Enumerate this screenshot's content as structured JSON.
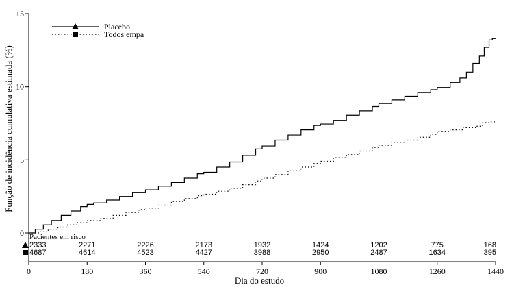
{
  "chart_data": {
    "type": "line",
    "xlabel": "Dia do estudo",
    "ylabel": "Função de incidência cumulativa estimada (%)",
    "xlim": [
      0,
      1440
    ],
    "ylim": [
      0,
      15
    ],
    "x_ticks": [
      0,
      180,
      360,
      540,
      720,
      900,
      1080,
      1260,
      1440
    ],
    "y_ticks": [
      0,
      5,
      10,
      15
    ],
    "grid": false,
    "legend_position": "top-left",
    "series": [
      {
        "name": "Placebo",
        "marker": "triangle",
        "line_style": "solid",
        "color": "#000000",
        "x": [
          0,
          20,
          45,
          70,
          100,
          130,
          160,
          180,
          200,
          240,
          280,
          320,
          360,
          400,
          440,
          480,
          520,
          540,
          580,
          620,
          660,
          700,
          720,
          760,
          800,
          840,
          880,
          900,
          940,
          980,
          1020,
          1060,
          1080,
          1120,
          1160,
          1200,
          1240,
          1260,
          1300,
          1330,
          1350,
          1370,
          1390,
          1405,
          1420,
          1430,
          1440
        ],
        "y": [
          0,
          0.25,
          0.55,
          0.85,
          1.2,
          1.5,
          1.8,
          1.95,
          2.05,
          2.25,
          2.5,
          2.75,
          2.95,
          3.2,
          3.45,
          3.75,
          4.05,
          4.15,
          4.5,
          4.85,
          5.3,
          5.75,
          5.95,
          6.35,
          6.7,
          7.05,
          7.35,
          7.45,
          7.7,
          8.05,
          8.35,
          8.65,
          8.85,
          9.1,
          9.35,
          9.6,
          9.8,
          9.95,
          10.3,
          10.6,
          11.0,
          11.6,
          12.1,
          12.7,
          13.2,
          13.3,
          13.3
        ]
      },
      {
        "name": "Todos empa",
        "marker": "square",
        "line_style": "dotted",
        "color": "#000000",
        "x": [
          0,
          30,
          60,
          90,
          120,
          150,
          180,
          220,
          260,
          300,
          340,
          360,
          400,
          440,
          480,
          520,
          540,
          580,
          620,
          660,
          700,
          720,
          760,
          800,
          840,
          880,
          900,
          940,
          980,
          1020,
          1060,
          1080,
          1120,
          1160,
          1200,
          1240,
          1260,
          1300,
          1340,
          1380,
          1400,
          1420,
          1440
        ],
        "y": [
          0,
          0.08,
          0.25,
          0.4,
          0.55,
          0.7,
          0.85,
          1.0,
          1.2,
          1.4,
          1.6,
          1.7,
          1.9,
          2.15,
          2.35,
          2.55,
          2.65,
          2.85,
          3.05,
          3.3,
          3.55,
          3.75,
          4.0,
          4.25,
          4.5,
          4.75,
          4.9,
          5.15,
          5.35,
          5.6,
          5.85,
          6.0,
          6.2,
          6.35,
          6.55,
          6.75,
          6.95,
          7.05,
          7.2,
          7.3,
          7.55,
          7.6,
          7.6
        ]
      }
    ],
    "at_risk": {
      "title": "Pacientes em risco",
      "x": [
        0,
        180,
        360,
        540,
        720,
        900,
        1080,
        1260,
        1440
      ],
      "rows": [
        {
          "series": "Placebo",
          "values": [
            "2333",
            "2271",
            "2226",
            "2173",
            "1932",
            "1424",
            "1202",
            "775",
            "168"
          ]
        },
        {
          "series": "Todos empa",
          "values": [
            "4687",
            "4614",
            "4523",
            "4427",
            "3988",
            "2950",
            "2487",
            "1634",
            "395"
          ]
        }
      ]
    }
  }
}
